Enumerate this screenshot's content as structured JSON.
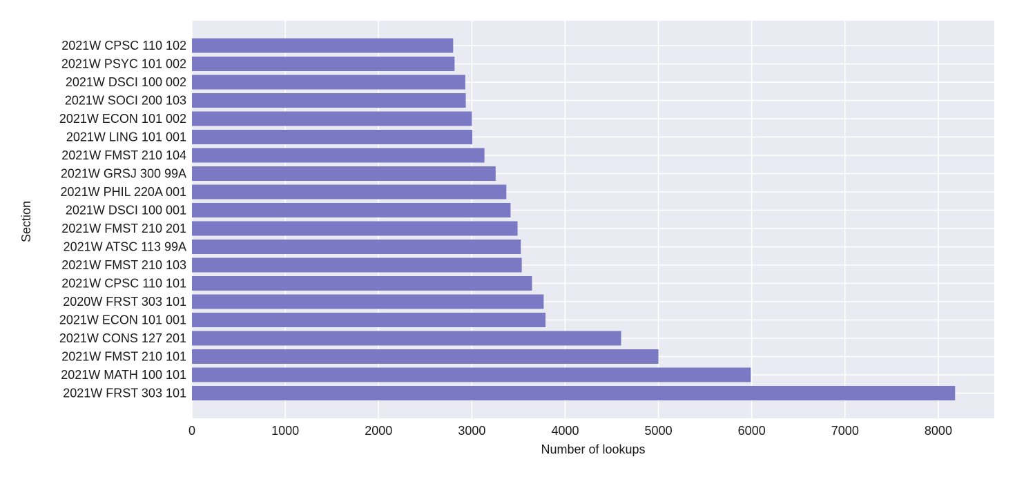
{
  "colors": {
    "plot_background": "#eaeaf2",
    "grid": "#ffffff",
    "bar": "#7b78c4"
  },
  "chart_data": {
    "type": "bar",
    "orientation": "horizontal",
    "title": "",
    "xlabel": "Number of lookups",
    "ylabel": "Section",
    "xlim": [
      0,
      8600
    ],
    "xticks": [
      0,
      1000,
      2000,
      3000,
      4000,
      5000,
      6000,
      7000,
      8000
    ],
    "grid": true,
    "categories": [
      "2021W CPSC 110 102",
      "2021W PSYC 101 002",
      "2021W DSCI 100 002",
      "2021W SOCI 200 103",
      "2021W ECON 101 002",
      "2021W LING 101 001",
      "2021W FMST 210 104",
      "2021W GRSJ 300 99A",
      "2021W PHIL 220A 001",
      "2021W DSCI 100 001",
      "2021W FMST 210 201",
      "2021W ATSC 113 99A",
      "2021W FMST 210 103",
      "2021W CPSC 110 101",
      "2020W FRST 303 101",
      "2021W ECON 101 001",
      "2021W CONS 127 201",
      "2021W FMST 210 101",
      "2021W MATH 100 101",
      "2021W FRST 303 101"
    ],
    "values": [
      2800,
      2815,
      2930,
      2935,
      3000,
      3005,
      3135,
      3255,
      3370,
      3415,
      3490,
      3525,
      3535,
      3645,
      3770,
      3790,
      4600,
      5000,
      5990,
      8180
    ]
  }
}
